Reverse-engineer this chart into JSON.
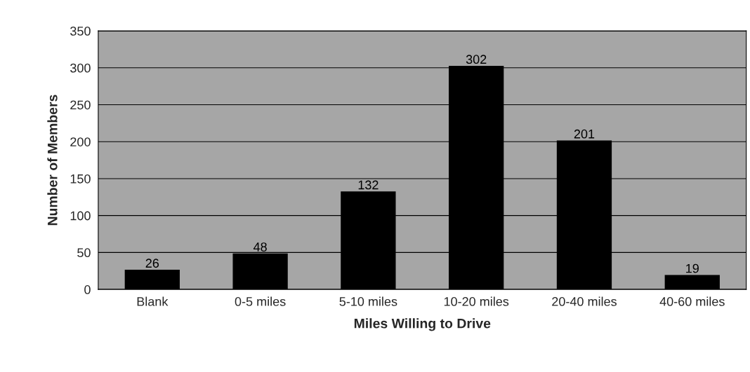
{
  "chart_data": {
    "type": "bar",
    "xlabel": "Miles Willing to Drive",
    "ylabel": "Number of Members",
    "categories": [
      "Blank",
      "0-5 miles",
      "5-10 miles",
      "10-20 miles",
      "20-40 miles",
      "40-60 miles"
    ],
    "values": [
      26,
      48,
      132,
      302,
      201,
      19
    ],
    "color": "#000000",
    "ylim": [
      0,
      350
    ],
    "yticks": [
      0,
      50,
      100,
      150,
      200,
      250,
      300,
      350
    ],
    "grid": "y",
    "data_labels": true
  }
}
